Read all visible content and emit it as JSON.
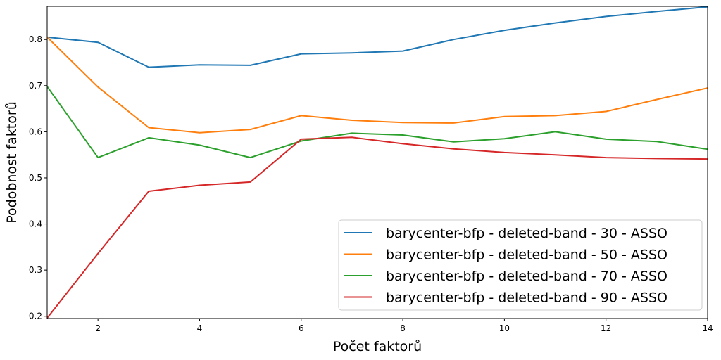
{
  "chart_data": {
    "type": "line",
    "xlabel": "Počet faktorů",
    "ylabel": "Podobnost faktorů",
    "xlim": [
      1,
      14
    ],
    "ylim": [
      0.195,
      0.872
    ],
    "xticks": [
      2,
      4,
      6,
      8,
      10,
      12,
      14
    ],
    "yticks": [
      0.2,
      0.3,
      0.4,
      0.5,
      0.6,
      0.7,
      0.8
    ],
    "grid": false,
    "legend_position": "bottom-right",
    "x": [
      1,
      2,
      3,
      4,
      5,
      6,
      7,
      8,
      9,
      10,
      11,
      12,
      13,
      14
    ],
    "series": [
      {
        "name": "barycenter-bfp - deleted-band - 30 - ASSO",
        "color": "#1f77b4",
        "values": [
          0.805,
          0.794,
          0.74,
          0.745,
          0.744,
          0.769,
          0.771,
          0.775,
          0.8,
          0.82,
          0.836,
          0.85,
          0.861,
          0.871
        ]
      },
      {
        "name": "barycenter-bfp - deleted-band - 50 - ASSO",
        "color": "#ff7f0e",
        "values": [
          0.805,
          0.697,
          0.609,
          0.598,
          0.605,
          0.635,
          0.625,
          0.62,
          0.619,
          0.633,
          0.635,
          0.644,
          0.67,
          0.695
        ]
      },
      {
        "name": "barycenter-bfp - deleted-band - 70 - ASSO",
        "color": "#2ca02c",
        "values": [
          0.698,
          0.544,
          0.587,
          0.571,
          0.544,
          0.58,
          0.597,
          0.593,
          0.578,
          0.585,
          0.6,
          0.584,
          0.579,
          0.562
        ]
      },
      {
        "name": "barycenter-bfp - deleted-band - 90 - ASSO",
        "color": "#d62728",
        "values": [
          0.196,
          0.336,
          0.471,
          0.484,
          0.491,
          0.584,
          0.588,
          0.574,
          0.563,
          0.555,
          0.55,
          0.544,
          0.542,
          0.541
        ]
      }
    ]
  }
}
